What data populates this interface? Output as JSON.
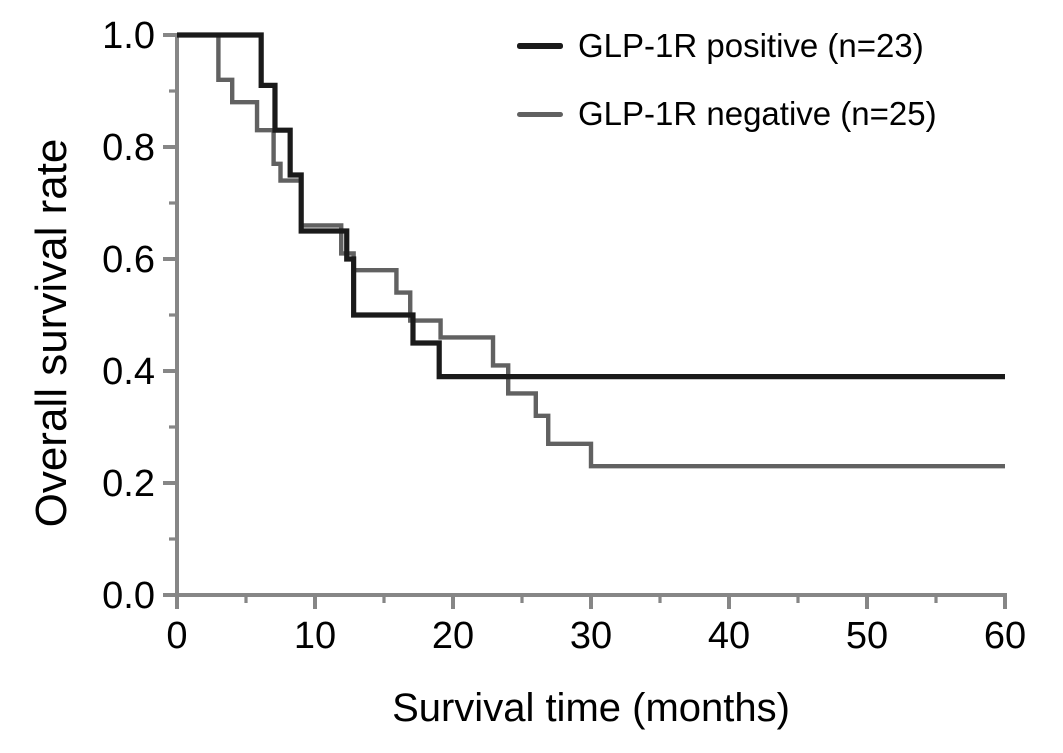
{
  "figure": {
    "background": "#ffffff"
  },
  "chart_data": {
    "type": "line",
    "subtype": "kaplan-meier-step-curve",
    "title": "",
    "xlabel": "Survival time (months)",
    "ylabel": "Overall survival rate",
    "xlim": [
      0,
      60
    ],
    "ylim": [
      0.0,
      1.0
    ],
    "grid": false,
    "x_major_ticks": [
      0,
      10,
      20,
      30,
      40,
      50,
      60
    ],
    "x_tick_labels": [
      "0",
      "10",
      "20",
      "30",
      "40",
      "50",
      "60"
    ],
    "x_minor_ticks": [
      5,
      15,
      25,
      35,
      45,
      55
    ],
    "y_major_ticks": [
      0.0,
      0.2,
      0.4,
      0.6,
      0.8,
      1.0
    ],
    "y_tick_labels": [
      "0.0",
      "0.2",
      "0.4",
      "0.6",
      "0.8",
      "1.0"
    ],
    "y_minor_ticks": [
      0.1,
      0.3,
      0.5,
      0.7,
      0.9
    ],
    "axis_color": "#868686",
    "tick_label_color": "#000000",
    "legend": {
      "position": "top-right",
      "entries": [
        {
          "label": "GLP-1R positive (n=23)",
          "color": "#1a1a1a"
        },
        {
          "label": "GLP-1R negative (n=25)",
          "color": "#616161"
        }
      ]
    },
    "series": [
      {
        "name": "GLP-1R positive (n=23)",
        "color": "#1a1a1a",
        "stroke_width": 5.2,
        "end_time": 60,
        "steps_time_rate": [
          [
            0,
            1.0
          ],
          [
            6.1,
            0.91
          ],
          [
            7.1,
            0.83
          ],
          [
            8.2,
            0.75
          ],
          [
            9.0,
            0.65
          ],
          [
            12.3,
            0.6
          ],
          [
            12.8,
            0.5
          ],
          [
            17.1,
            0.45
          ],
          [
            19.0,
            0.39
          ]
        ]
      },
      {
        "name": "GLP-1R negative (n=25)",
        "color": "#616161",
        "stroke_width": 4.4,
        "end_time": 60,
        "steps_time_rate": [
          [
            0,
            1.0
          ],
          [
            3.0,
            0.92
          ],
          [
            4.0,
            0.88
          ],
          [
            5.8,
            0.83
          ],
          [
            7.0,
            0.77
          ],
          [
            7.5,
            0.74
          ],
          [
            9.0,
            0.66
          ],
          [
            11.9,
            0.61
          ],
          [
            12.8,
            0.58
          ],
          [
            15.9,
            0.54
          ],
          [
            16.9,
            0.49
          ],
          [
            19.1,
            0.46
          ],
          [
            22.9,
            0.41
          ],
          [
            24.0,
            0.36
          ],
          [
            26.0,
            0.32
          ],
          [
            26.9,
            0.27
          ],
          [
            30.0,
            0.23
          ]
        ]
      }
    ]
  }
}
